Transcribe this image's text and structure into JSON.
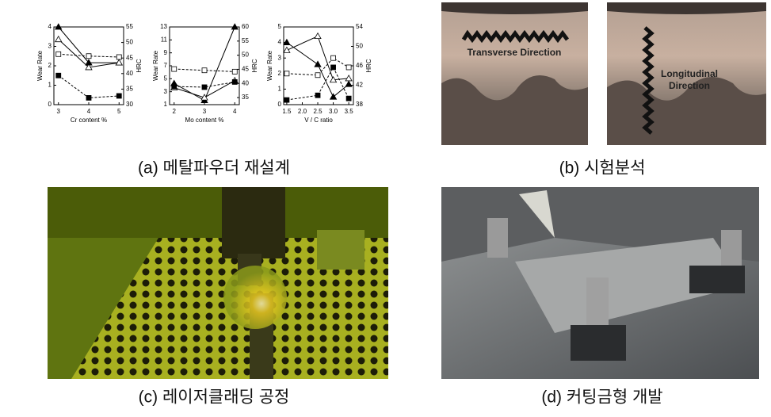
{
  "chart_data": [
    {
      "type": "line",
      "xlabel": "Cr content %",
      "ylabel": "Wear Rate",
      "y2label": "HRC",
      "x": [
        3,
        4,
        5
      ],
      "xlim": [
        2.85,
        5.15
      ],
      "xticks": [
        3,
        4,
        5
      ],
      "ylim": [
        0,
        4
      ],
      "yticks": [
        0,
        1,
        2,
        3,
        4
      ],
      "y2lim": [
        30,
        55
      ],
      "y2ticks": [
        30,
        35,
        40,
        45,
        50,
        55
      ],
      "series": [
        {
          "color": "#000000",
          "marker": "triangle",
          "filled": true,
          "dashed": false,
          "axis": "y2",
          "values": [
            55,
            43.5,
            43.5
          ]
        },
        {
          "color": "#000000",
          "marker": "triangle",
          "filled": false,
          "dashed": false,
          "axis": "y2",
          "values": [
            51,
            42,
            43.5
          ]
        },
        {
          "color": "#000000",
          "marker": "square",
          "filled": false,
          "dashed": true,
          "values": [
            2.6,
            2.5,
            2.45
          ]
        },
        {
          "color": "#000000",
          "marker": "square",
          "filled": true,
          "dashed": true,
          "values": [
            1.5,
            0.35,
            0.45
          ]
        }
      ]
    },
    {
      "type": "line",
      "xlabel": "Mo content %",
      "ylabel": "Wear Rate",
      "y2label": "HRC",
      "x": [
        2,
        3,
        4
      ],
      "xlim": [
        1.85,
        4.15
      ],
      "xticks": [
        2,
        3,
        4
      ],
      "ylim": [
        1,
        13
      ],
      "yticks": [
        1,
        3,
        5,
        7,
        9,
        11,
        13
      ],
      "y2lim": [
        32.5,
        60
      ],
      "y2ticks": [
        35,
        40,
        45,
        50,
        55,
        60
      ],
      "series": [
        {
          "color": "#000000",
          "marker": "triangle",
          "filled": true,
          "dashed": false,
          "axis": "y2",
          "values": [
            40,
            34,
            60
          ]
        },
        {
          "color": "#000000",
          "marker": "triangle",
          "filled": false,
          "dashed": false,
          "axis": "y2",
          "values": [
            38.5,
            35,
            41
          ]
        },
        {
          "color": "#000000",
          "marker": "square",
          "filled": false,
          "dashed": true,
          "values": [
            6.5,
            6.3,
            6.1
          ]
        },
        {
          "color": "#000000",
          "marker": "square",
          "filled": true,
          "dashed": true,
          "values": [
            3.8,
            3.7,
            4.5
          ]
        }
      ]
    },
    {
      "type": "line",
      "xlabel": "V / C ratio",
      "ylabel": "Wear Rate",
      "y2label": "HRC",
      "x": [
        1.5,
        2.5,
        3.0,
        3.5
      ],
      "xlim": [
        1.4,
        3.65
      ],
      "xticks": [
        1.5,
        {
          "value": 2,
          "label": "2.0"
        },
        2.5,
        {
          "value": 3,
          "label": "3.0"
        },
        3.5
      ],
      "ylim": [
        0,
        5
      ],
      "yticks": [
        0,
        1,
        2,
        3,
        4,
        5
      ],
      "y2lim": [
        38,
        54
      ],
      "y2ticks": [
        38,
        42,
        46,
        50,
        54
      ],
      "series": [
        {
          "color": "#000000",
          "marker": "triangle",
          "filled": true,
          "dashed": false,
          "axis": "y2",
          "values": [
            50.8,
            46.3,
            39.6,
            42.2
          ]
        },
        {
          "color": "#000000",
          "marker": "triangle",
          "filled": false,
          "dashed": false,
          "axis": "y2",
          "values": [
            49.2,
            52.1,
            43.1,
            43.4
          ]
        },
        {
          "color": "#000000",
          "marker": "square",
          "filled": false,
          "dashed": true,
          "values": [
            2.0,
            1.9,
            3.0,
            2.4
          ]
        },
        {
          "color": "#000000",
          "marker": "square",
          "filled": true,
          "dashed": true,
          "values": [
            0.3,
            0.6,
            2.4,
            0.4
          ]
        }
      ]
    }
  ],
  "photo_labels": {
    "transverse": "Transverse Direction",
    "longitudinal": "Longitudinal Direction"
  },
  "captions": [
    "(a)  메탈파우더 재설계",
    "(b)  시험분석",
    "(c)  레이저클래딩 공정",
    "(d)  커팅금형 개발"
  ]
}
